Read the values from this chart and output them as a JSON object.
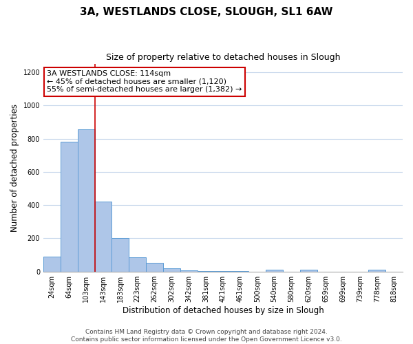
{
  "title": "3A, WESTLANDS CLOSE, SLOUGH, SL1 6AW",
  "subtitle": "Size of property relative to detached houses in Slough",
  "xlabel": "Distribution of detached houses by size in Slough",
  "ylabel": "Number of detached properties",
  "bin_labels": [
    "24sqm",
    "64sqm",
    "103sqm",
    "143sqm",
    "183sqm",
    "223sqm",
    "262sqm",
    "302sqm",
    "342sqm",
    "381sqm",
    "421sqm",
    "461sqm",
    "500sqm",
    "540sqm",
    "580sqm",
    "620sqm",
    "659sqm",
    "699sqm",
    "739sqm",
    "778sqm",
    "818sqm"
  ],
  "bar_values": [
    90,
    780,
    855,
    420,
    200,
    85,
    52,
    20,
    8,
    5,
    3,
    2,
    0,
    10,
    0,
    10,
    0,
    0,
    0,
    10,
    0
  ],
  "bar_color": "#aec6e8",
  "bar_edge_color": "#5b9bd5",
  "vline_x_index": 2,
  "vline_color": "#cc0000",
  "annotation_line1": "3A WESTLANDS CLOSE: 114sqm",
  "annotation_line2": "← 45% of detached houses are smaller (1,120)",
  "annotation_line3": "55% of semi-detached houses are larger (1,382) →",
  "annotation_box_color": "#ffffff",
  "annotation_box_edge": "#cc0000",
  "footer_text": "Contains HM Land Registry data © Crown copyright and database right 2024.\nContains public sector information licensed under the Open Government Licence v3.0.",
  "ylim": [
    0,
    1250
  ],
  "yticks": [
    0,
    200,
    400,
    600,
    800,
    1000,
    1200
  ],
  "bg_color": "#ffffff",
  "grid_color": "#c8d8ec",
  "title_fontsize": 11,
  "subtitle_fontsize": 9,
  "axis_label_fontsize": 8.5,
  "tick_fontsize": 7,
  "annotation_fontsize": 8,
  "footer_fontsize": 6.5
}
